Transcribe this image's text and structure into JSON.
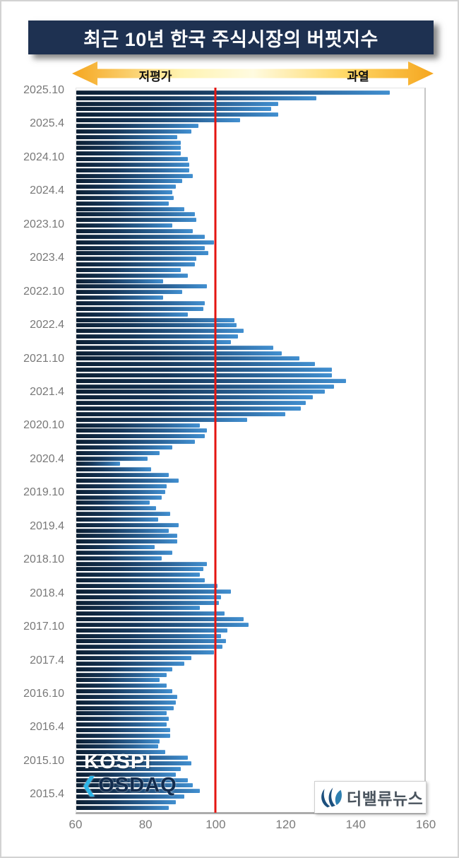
{
  "title": "최근 10년 한국 주식시장의 버핏지수",
  "arrow": {
    "left_label": "저평가",
    "right_label": "과열",
    "color_edge": "#f5a61f",
    "color_center": "#fffbe0"
  },
  "annotations": {
    "kospi_label": "KOSPI",
    "kosdaq_chevron": "❮",
    "kosdaq_label": "OSDAQ"
  },
  "logo": {
    "text": "더밸류뉴스"
  },
  "chart_data": {
    "type": "bar",
    "orientation": "horizontal",
    "title": "최근 10년 한국 주식시장의 버핏지수",
    "x_axis": {
      "min": 60,
      "max": 160,
      "ticks": [
        60,
        80,
        100,
        120,
        140,
        160
      ]
    },
    "reference_line": {
      "value": 100,
      "color": "#e41511"
    },
    "grid": false,
    "bar_color_start": "#0c1f33",
    "bar_color_end": "#418fd0",
    "label_every": 6,
    "y_labels": [
      "2025.10",
      "2025.4",
      "2024.10",
      "2024.4",
      "2023.10",
      "2023.4",
      "2022.10",
      "2022.4",
      "2021.10",
      "2021.4",
      "2020.10",
      "2020.4",
      "2019.10",
      "2019.4",
      "2018.10",
      "2018.4",
      "2017.10",
      "2017.4",
      "2016.10",
      "2016.4",
      "2015.10",
      "2015.4"
    ],
    "values": [
      150,
      129,
      118,
      116,
      118,
      107,
      95,
      93,
      89,
      90,
      90,
      90,
      92,
      92.5,
      92.5,
      93.5,
      90.5,
      88.5,
      87.5,
      88,
      86.5,
      91,
      94,
      94.5,
      87.5,
      93.5,
      97,
      99.5,
      97,
      98,
      94.5,
      94,
      90,
      92,
      85,
      97.5,
      90.5,
      85,
      97,
      96.5,
      92,
      105.5,
      106,
      108,
      106.5,
      104.5,
      116.5,
      119,
      124,
      128.5,
      133.5,
      133.5,
      137.5,
      134,
      131.5,
      128,
      126,
      124.5,
      120,
      109,
      95.5,
      97.5,
      97,
      94,
      87.5,
      84,
      80.5,
      72.5,
      81.5,
      86.5,
      89.5,
      86,
      85.5,
      84.5,
      81,
      83,
      87,
      83.5,
      89.5,
      86.5,
      89,
      89,
      82.5,
      87.5,
      84.5,
      97.5,
      96.5,
      95.5,
      97,
      100.5,
      104.5,
      101.5,
      101,
      95.5,
      102.5,
      108,
      109.5,
      103.5,
      101.5,
      103,
      102,
      99.5,
      93,
      91,
      87.5,
      86,
      84,
      86,
      87.5,
      89,
      88.5,
      88,
      86,
      86.5,
      86,
      87,
      87,
      84,
      83.5,
      85.5,
      92,
      93,
      90,
      88.5,
      92,
      93.5,
      95.5,
      91,
      88.5,
      86.5
    ]
  }
}
